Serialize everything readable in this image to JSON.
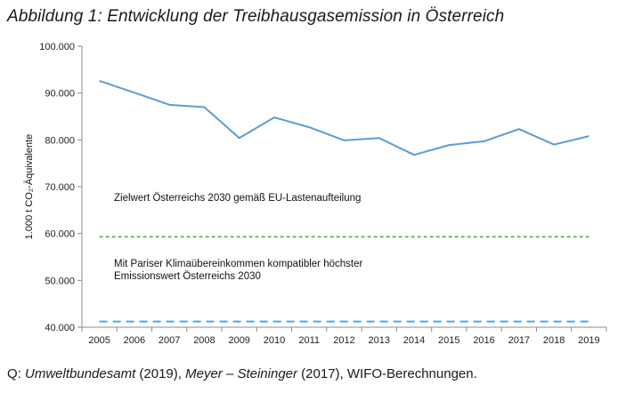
{
  "figure_title": "Abbildung 1: Entwicklung der Treibhausgasemission in Österreich",
  "source": {
    "prefix": "Q: ",
    "part1": "Umweltbundesamt",
    "part2": " (2019), ",
    "part3": "Meyer – Steininger",
    "part4": " (2017), WIFO-Berechnungen."
  },
  "chart_data": {
    "type": "line",
    "x": [
      2005,
      2006,
      2007,
      2008,
      2009,
      2010,
      2011,
      2012,
      2013,
      2014,
      2015,
      2016,
      2017,
      2018,
      2019
    ],
    "series": [
      {
        "values": [
          92600,
          90100,
          87500,
          87000,
          80400,
          84800,
          82700,
          79900,
          80400,
          76800,
          78900,
          79700,
          82300,
          79000,
          80800
        ],
        "color": "#5b9bd5"
      }
    ],
    "reference_lines": [
      {
        "value": 59300,
        "color": "#5ea84a",
        "style": "dashed",
        "label": [
          "Zielwert Österreichs 2030 gemäß EU-Lastenaufteilung"
        ]
      },
      {
        "value": 41200,
        "color": "#3fa9f5",
        "style": "long-dashed",
        "label": [
          "Mit Pariser Klimaübereinkommen kompatibler höchster",
          "Emissionswert Österreichs 2030"
        ]
      }
    ],
    "ylim": [
      40000,
      100000
    ],
    "yticks": [
      40000,
      50000,
      60000,
      70000,
      80000,
      90000,
      100000
    ],
    "ytick_labels": [
      "40.000",
      "50.000",
      "60.000",
      "70.000",
      "80.000",
      "90.000",
      "100.000"
    ],
    "xtick_labels": [
      "2005",
      "2006",
      "2007",
      "2008",
      "2009",
      "2010",
      "2011",
      "2012",
      "2013",
      "2014",
      "2015",
      "2016",
      "2017",
      "2018",
      "2019"
    ],
    "ylabel": "1.000 t CO₂-Äquivalente",
    "xlabel": "",
    "grid": false,
    "legend": "none"
  }
}
